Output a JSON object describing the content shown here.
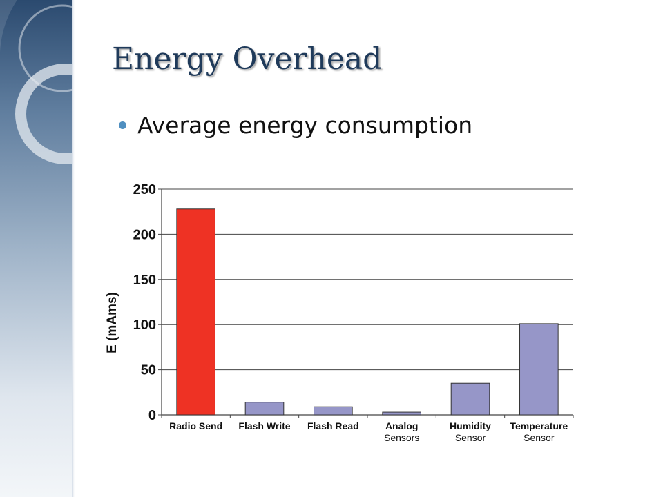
{
  "slide": {
    "title": "Energy Overhead",
    "bullet": "Average energy consumption",
    "accent": "#1f3a5a",
    "bullet_color": "#4f8fc0"
  },
  "chart_data": {
    "type": "bar",
    "categories": [
      [
        "Radio Send"
      ],
      [
        "Flash Write"
      ],
      [
        "Flash Read"
      ],
      [
        "Analog",
        "Sensors"
      ],
      [
        "Humidity",
        "Sensor"
      ],
      [
        "Temperature",
        "Sensor"
      ]
    ],
    "values": [
      228,
      14,
      9,
      3,
      35,
      101
    ],
    "colors": [
      "#ee3224",
      "#9696c8",
      "#9696c8",
      "#9696c8",
      "#9696c8",
      "#9696c8"
    ],
    "ylabel": "E (mAms)",
    "ylim": [
      0,
      250
    ],
    "yticks": [
      0,
      50,
      100,
      150,
      200,
      250
    ],
    "grid": true
  }
}
